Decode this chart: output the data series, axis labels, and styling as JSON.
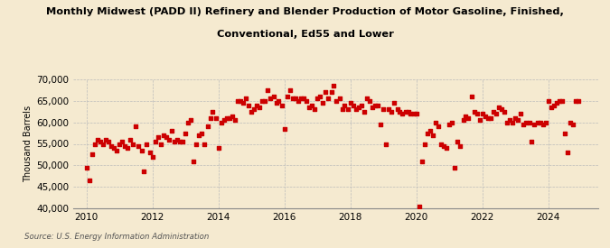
{
  "title_line1": "Monthly Midwest (PADD II) Refinery and Blender Production of Motor Gasoline, Finished,",
  "title_line2": "Conventional, Ed55 and Lower",
  "ylabel": "Thousand Barrels",
  "source": "Source: U.S. Energy Information Administration",
  "background_color": "#f5ead0",
  "dot_color": "#cc0000",
  "grid_color": "#bbbbbb",
  "ylim": [
    40000,
    70000
  ],
  "yticks": [
    40000,
    45000,
    50000,
    55000,
    60000,
    65000,
    70000
  ],
  "xlim": [
    2009.6,
    2025.5
  ],
  "xticks": [
    2010,
    2012,
    2014,
    2016,
    2018,
    2020,
    2022,
    2024
  ],
  "data": [
    [
      2010.0,
      49500
    ],
    [
      2010.08,
      46500
    ],
    [
      2010.17,
      52500
    ],
    [
      2010.25,
      55000
    ],
    [
      2010.33,
      56000
    ],
    [
      2010.42,
      55500
    ],
    [
      2010.5,
      55000
    ],
    [
      2010.58,
      56000
    ],
    [
      2010.67,
      55500
    ],
    [
      2010.75,
      54500
    ],
    [
      2010.83,
      54000
    ],
    [
      2010.92,
      53500
    ],
    [
      2011.0,
      55000
    ],
    [
      2011.08,
      55500
    ],
    [
      2011.17,
      54500
    ],
    [
      2011.25,
      54000
    ],
    [
      2011.33,
      56000
    ],
    [
      2011.42,
      55000
    ],
    [
      2011.5,
      59000
    ],
    [
      2011.58,
      54500
    ],
    [
      2011.67,
      53500
    ],
    [
      2011.75,
      48500
    ],
    [
      2011.83,
      55000
    ],
    [
      2011.92,
      53000
    ],
    [
      2012.0,
      52000
    ],
    [
      2012.08,
      55500
    ],
    [
      2012.17,
      56500
    ],
    [
      2012.25,
      55000
    ],
    [
      2012.33,
      57000
    ],
    [
      2012.42,
      56500
    ],
    [
      2012.5,
      56000
    ],
    [
      2012.58,
      58000
    ],
    [
      2012.67,
      55500
    ],
    [
      2012.75,
      56000
    ],
    [
      2012.83,
      55500
    ],
    [
      2012.92,
      55500
    ],
    [
      2013.0,
      57500
    ],
    [
      2013.08,
      60000
    ],
    [
      2013.17,
      60500
    ],
    [
      2013.25,
      51000
    ],
    [
      2013.33,
      55000
    ],
    [
      2013.42,
      57000
    ],
    [
      2013.5,
      57500
    ],
    [
      2013.58,
      55000
    ],
    [
      2013.67,
      59000
    ],
    [
      2013.75,
      61000
    ],
    [
      2013.83,
      62500
    ],
    [
      2013.92,
      61000
    ],
    [
      2014.0,
      54000
    ],
    [
      2014.08,
      60000
    ],
    [
      2014.17,
      60500
    ],
    [
      2014.25,
      61000
    ],
    [
      2014.33,
      61000
    ],
    [
      2014.42,
      61500
    ],
    [
      2014.5,
      60500
    ],
    [
      2014.58,
      65000
    ],
    [
      2014.67,
      65000
    ],
    [
      2014.75,
      64500
    ],
    [
      2014.83,
      65500
    ],
    [
      2014.92,
      64000
    ],
    [
      2015.0,
      62500
    ],
    [
      2015.08,
      63000
    ],
    [
      2015.17,
      64000
    ],
    [
      2015.25,
      63500
    ],
    [
      2015.33,
      65000
    ],
    [
      2015.42,
      65000
    ],
    [
      2015.5,
      67500
    ],
    [
      2015.58,
      65500
    ],
    [
      2015.67,
      66000
    ],
    [
      2015.75,
      64500
    ],
    [
      2015.83,
      65000
    ],
    [
      2015.92,
      64000
    ],
    [
      2016.0,
      58500
    ],
    [
      2016.08,
      66000
    ],
    [
      2016.17,
      67500
    ],
    [
      2016.25,
      65500
    ],
    [
      2016.33,
      65500
    ],
    [
      2016.42,
      65000
    ],
    [
      2016.5,
      65500
    ],
    [
      2016.58,
      65500
    ],
    [
      2016.67,
      65000
    ],
    [
      2016.75,
      63500
    ],
    [
      2016.83,
      64000
    ],
    [
      2016.92,
      63000
    ],
    [
      2017.0,
      65500
    ],
    [
      2017.08,
      66000
    ],
    [
      2017.17,
      64500
    ],
    [
      2017.25,
      67000
    ],
    [
      2017.33,
      65500
    ],
    [
      2017.42,
      67000
    ],
    [
      2017.5,
      68500
    ],
    [
      2017.58,
      65000
    ],
    [
      2017.67,
      65500
    ],
    [
      2017.75,
      63000
    ],
    [
      2017.83,
      64000
    ],
    [
      2017.92,
      63000
    ],
    [
      2018.0,
      64500
    ],
    [
      2018.08,
      64000
    ],
    [
      2018.17,
      63000
    ],
    [
      2018.25,
      63500
    ],
    [
      2018.33,
      64000
    ],
    [
      2018.42,
      62500
    ],
    [
      2018.5,
      65500
    ],
    [
      2018.58,
      65000
    ],
    [
      2018.67,
      63500
    ],
    [
      2018.75,
      64000
    ],
    [
      2018.83,
      64000
    ],
    [
      2018.92,
      59500
    ],
    [
      2019.0,
      63000
    ],
    [
      2019.08,
      55000
    ],
    [
      2019.17,
      63000
    ],
    [
      2019.25,
      62500
    ],
    [
      2019.33,
      64500
    ],
    [
      2019.42,
      63000
    ],
    [
      2019.5,
      62500
    ],
    [
      2019.58,
      62000
    ],
    [
      2019.67,
      62500
    ],
    [
      2019.75,
      62500
    ],
    [
      2019.83,
      62000
    ],
    [
      2019.92,
      62000
    ],
    [
      2020.0,
      62000
    ],
    [
      2020.08,
      40500
    ],
    [
      2020.17,
      51000
    ],
    [
      2020.25,
      55000
    ],
    [
      2020.33,
      57500
    ],
    [
      2020.42,
      58000
    ],
    [
      2020.5,
      57000
    ],
    [
      2020.58,
      60000
    ],
    [
      2020.67,
      59000
    ],
    [
      2020.75,
      55000
    ],
    [
      2020.83,
      54500
    ],
    [
      2020.92,
      54000
    ],
    [
      2021.0,
      59500
    ],
    [
      2021.08,
      60000
    ],
    [
      2021.17,
      49500
    ],
    [
      2021.25,
      55500
    ],
    [
      2021.33,
      54500
    ],
    [
      2021.42,
      60500
    ],
    [
      2021.5,
      61500
    ],
    [
      2021.58,
      61000
    ],
    [
      2021.67,
      66000
    ],
    [
      2021.75,
      62500
    ],
    [
      2021.83,
      62000
    ],
    [
      2021.92,
      60500
    ],
    [
      2022.0,
      62000
    ],
    [
      2022.08,
      61500
    ],
    [
      2022.17,
      61000
    ],
    [
      2022.25,
      61000
    ],
    [
      2022.33,
      62500
    ],
    [
      2022.42,
      62000
    ],
    [
      2022.5,
      63500
    ],
    [
      2022.58,
      63000
    ],
    [
      2022.67,
      62500
    ],
    [
      2022.75,
      60000
    ],
    [
      2022.83,
      60500
    ],
    [
      2022.92,
      60000
    ],
    [
      2023.0,
      61000
    ],
    [
      2023.08,
      60500
    ],
    [
      2023.17,
      62000
    ],
    [
      2023.25,
      59500
    ],
    [
      2023.33,
      60000
    ],
    [
      2023.42,
      60000
    ],
    [
      2023.5,
      55500
    ],
    [
      2023.58,
      59500
    ],
    [
      2023.67,
      60000
    ],
    [
      2023.75,
      60000
    ],
    [
      2023.83,
      59500
    ],
    [
      2023.92,
      60000
    ],
    [
      2024.0,
      65000
    ],
    [
      2024.08,
      63500
    ],
    [
      2024.17,
      64000
    ],
    [
      2024.25,
      64500
    ],
    [
      2024.33,
      65000
    ],
    [
      2024.42,
      65000
    ],
    [
      2024.5,
      57500
    ],
    [
      2024.58,
      53000
    ],
    [
      2024.67,
      60000
    ],
    [
      2024.75,
      59500
    ],
    [
      2024.83,
      65000
    ],
    [
      2024.92,
      65000
    ]
  ]
}
